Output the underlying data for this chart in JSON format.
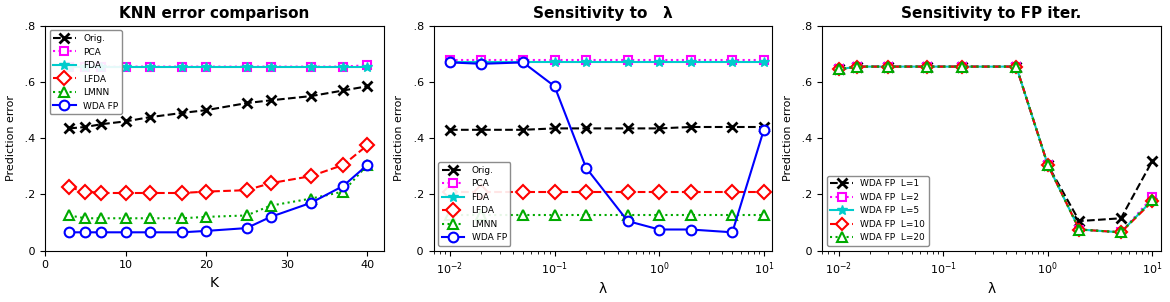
{
  "plot1": {
    "title": "KNN error comparison",
    "xlabel": "K",
    "ylabel": "Prediction error",
    "xlim": [
      0,
      42
    ],
    "ylim": [
      0,
      0.8
    ],
    "yticks": [
      0,
      0.2,
      0.4,
      0.6,
      0.8
    ],
    "xticks": [
      0,
      10,
      20,
      30,
      40
    ],
    "K_values": [
      3,
      5,
      7,
      10,
      13,
      17,
      20,
      25,
      28,
      33,
      37,
      40
    ],
    "Orig": [
      0.435,
      0.44,
      0.45,
      0.46,
      0.475,
      0.49,
      0.5,
      0.525,
      0.535,
      0.55,
      0.57,
      0.585
    ],
    "PCA": [
      0.655,
      0.655,
      0.655,
      0.655,
      0.655,
      0.655,
      0.655,
      0.655,
      0.655,
      0.655,
      0.655,
      0.66
    ],
    "FDA": [
      0.655,
      0.655,
      0.655,
      0.655,
      0.655,
      0.655,
      0.655,
      0.655,
      0.655,
      0.655,
      0.655,
      0.655
    ],
    "LFDA": [
      0.225,
      0.21,
      0.205,
      0.205,
      0.205,
      0.205,
      0.21,
      0.215,
      0.24,
      0.265,
      0.305,
      0.375
    ],
    "LMNN": [
      0.125,
      0.115,
      0.115,
      0.115,
      0.115,
      0.115,
      0.12,
      0.125,
      0.16,
      0.185,
      0.21,
      0.305
    ],
    "WDA_FP": [
      0.065,
      0.065,
      0.065,
      0.065,
      0.065,
      0.065,
      0.07,
      0.08,
      0.12,
      0.17,
      0.23,
      0.305
    ]
  },
  "plot2": {
    "title": "Sensitivity to   λ",
    "xlabel": "λ",
    "ylabel": "Prediction error",
    "ylim": [
      0,
      0.8
    ],
    "yticks": [
      0,
      0.2,
      0.4,
      0.6,
      0.8
    ],
    "xlim": [
      0.007,
      12.0
    ],
    "lambda_values": [
      0.01,
      0.02,
      0.05,
      0.1,
      0.2,
      0.5,
      1.0,
      2.0,
      5.0,
      10.0
    ],
    "Orig": [
      0.43,
      0.43,
      0.43,
      0.435,
      0.435,
      0.435,
      0.435,
      0.44,
      0.44,
      0.44
    ],
    "PCA": [
      0.68,
      0.68,
      0.68,
      0.68,
      0.68,
      0.68,
      0.68,
      0.68,
      0.68,
      0.68
    ],
    "FDA": [
      0.67,
      0.67,
      0.67,
      0.67,
      0.67,
      0.67,
      0.67,
      0.67,
      0.67,
      0.67
    ],
    "LFDA": [
      0.21,
      0.21,
      0.21,
      0.21,
      0.21,
      0.21,
      0.21,
      0.21,
      0.21,
      0.21
    ],
    "LMNN": [
      0.125,
      0.125,
      0.125,
      0.125,
      0.125,
      0.125,
      0.125,
      0.125,
      0.125,
      0.125
    ],
    "WDA_FP": [
      0.67,
      0.665,
      0.67,
      0.585,
      0.295,
      0.105,
      0.075,
      0.075,
      0.065,
      0.43
    ]
  },
  "plot3": {
    "title": "Sensitivity to FP iter.",
    "xlabel": "λ",
    "ylabel": "Prediction error",
    "ylim": [
      0,
      0.8
    ],
    "yticks": [
      0,
      0.2,
      0.4,
      0.6,
      0.8
    ],
    "xlim": [
      0.007,
      12.0
    ],
    "lambda_values": [
      0.01,
      0.015,
      0.03,
      0.07,
      0.15,
      0.5,
      1.0,
      2.0,
      5.0,
      10.0
    ],
    "L1": [
      0.645,
      0.655,
      0.655,
      0.655,
      0.655,
      0.655,
      0.305,
      0.105,
      0.115,
      0.32
    ],
    "L2": [
      0.645,
      0.655,
      0.655,
      0.655,
      0.655,
      0.655,
      0.305,
      0.075,
      0.065,
      0.19
    ],
    "L5": [
      0.645,
      0.655,
      0.655,
      0.655,
      0.655,
      0.655,
      0.305,
      0.075,
      0.065,
      0.18
    ],
    "L10": [
      0.645,
      0.655,
      0.655,
      0.655,
      0.655,
      0.655,
      0.305,
      0.075,
      0.065,
      0.175
    ],
    "L20": [
      0.645,
      0.655,
      0.655,
      0.655,
      0.655,
      0.655,
      0.305,
      0.075,
      0.065,
      0.18
    ]
  },
  "colors": {
    "Orig": "#000000",
    "PCA": "#ff00ff",
    "FDA": "#00cccc",
    "LFDA": "#ff0000",
    "LMNN": "#00aa00",
    "WDA_FP": "#0000ff",
    "L1": "#000000",
    "L2": "#ff00ff",
    "L5": "#00cccc",
    "L10": "#ff0000",
    "L20": "#00aa00"
  }
}
